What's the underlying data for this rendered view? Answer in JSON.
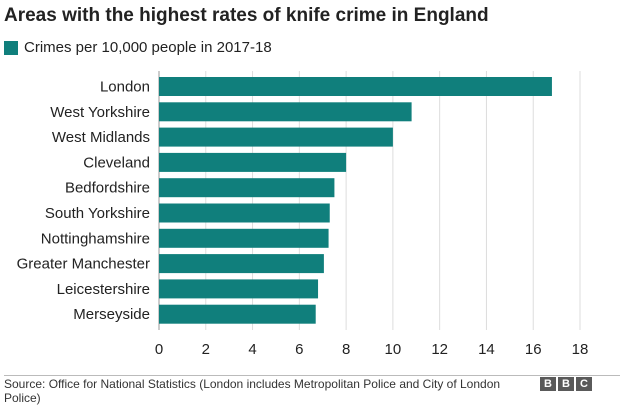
{
  "title": "Areas with the highest rates of knife crime in England",
  "legend": {
    "label": "Crimes per 10,000 people in 2017-18",
    "color": "#107f7c"
  },
  "chart_data": {
    "type": "bar",
    "orientation": "horizontal",
    "title": "Areas with the highest rates of knife crime in England",
    "xlabel": "",
    "ylabel": "",
    "categories": [
      "London",
      "West Yorkshire",
      "West Midlands",
      "Cleveland",
      "Bedfordshire",
      "South Yorkshire",
      "Nottinghamshire",
      "Greater Manchester",
      "Leicestershire",
      "Merseyside"
    ],
    "series": [
      {
        "name": "Crimes per 10,000 people in 2017-18",
        "values": [
          16.8,
          10.8,
          10.0,
          8.0,
          7.5,
          7.3,
          7.25,
          7.05,
          6.8,
          6.7
        ],
        "color": "#107f7c"
      }
    ],
    "xlim": [
      0,
      18
    ],
    "xticks": [
      0,
      2,
      4,
      6,
      8,
      10,
      12,
      14,
      16,
      18
    ],
    "grid": true,
    "legend_position": "top-left"
  },
  "footer": {
    "source": "Source: Office for National Statistics (London includes Metropolitan Police and City of London Police)",
    "logo": [
      "B",
      "B",
      "C"
    ]
  }
}
